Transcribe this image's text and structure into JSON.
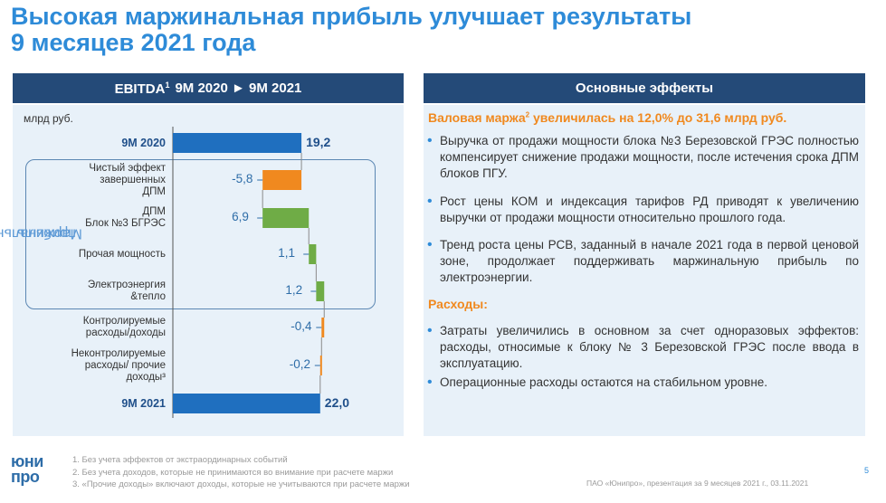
{
  "title": {
    "line1": "Высокая маржинальная прибыль улучшает результаты",
    "line2": "9 месяцев 2021 года"
  },
  "left_panel": {
    "header_ebitda": "EBITDA",
    "header_sup": "1",
    "header_rest": "9М 2020 ► 9М 2021",
    "unit": "млрд руб.",
    "group_label_line1": "Маржинальная",
    "group_label_line2": "прибыль"
  },
  "chart_data": {
    "type": "bar",
    "categories": [
      "9М 2020",
      "Чистый эффект завершенных ДПМ",
      "ДПМ Блок №3 БГРЭС",
      "Прочая мощность",
      "Электроэнергия &тепло",
      "Контролируемые расходы/доходы",
      "Неконтролируемые расходы/ прочие доходы",
      "9М 2021"
    ],
    "values": [
      19.2,
      -5.8,
      6.9,
      1.1,
      1.2,
      -0.4,
      -0.2,
      22.0
    ],
    "value_labels": [
      "19,2",
      "-5,8",
      "6,9",
      "1,1",
      "1,2",
      "-0,4",
      "-0,2",
      "22,0"
    ],
    "label_lines": [
      [
        "9М 2020"
      ],
      [
        "Чистый эффект",
        "завершенных",
        "ДПМ"
      ],
      [
        "ДПМ",
        "Блок №3 БГРЭС"
      ],
      [
        "Прочая мощность"
      ],
      [
        "Электроэнергия",
        "&тепло"
      ],
      [
        "Контролируемые",
        "расходы/доходы"
      ],
      [
        "Неконтролируемые",
        "расходы/ прочие",
        "доходы³"
      ],
      [
        "9М 2021"
      ]
    ],
    "kinds": [
      "total",
      "delta",
      "delta",
      "delta",
      "delta",
      "delta",
      "delta",
      "total"
    ],
    "colors": {
      "total": "#1f6fbf",
      "positive": "#6fac46",
      "negative": "#f0891f"
    },
    "orientation": "horizontal-waterfall"
  },
  "right_panel": {
    "header": "Основные эффекты",
    "section1_heading": "Валовая маржа",
    "section1_sup": "2",
    "section1_heading_rest": " увеличилась на 12,0% до 31,6 млрд руб.",
    "section1_bullets": [
      "Выручка от продажи мощности блока №3 Березовской ГРЭС полностью компенсирует снижение продажи мощности, после истечения срока ДПМ блоков ПГУ.",
      "Рост цены КОМ и индексация тарифов РД приводят к увеличению выручки от продажи мощности относительно  прошлого года.",
      "Тренд роста цены РСВ, заданный в начале 2021 года в первой ценовой зоне, продолжает поддерживать маржинальную прибыль по электроэнергии."
    ],
    "section2_heading": "Расходы:",
    "section2_bullets": [
      "Затраты увеличились в основном за счет одноразовых эффектов: расходы, относимые к блоку № 3 Березовской ГРЭС после ввода в эксплуатацию.",
      "Операционные расходы остаются на стабильном уровне."
    ]
  },
  "footer": {
    "logo_line1": "юни",
    "logo_line2": "про",
    "notes": [
      "1. Без учета эффектов от экстраординарных событий",
      "2. Без учета доходов, которые не принимаются во внимание при расчете маржи",
      "3. «Прочие доходы» включают доходы, которые не учитываются при расчете маржи"
    ],
    "source": "ПАО «Юнипро», презентация за 9 месяцев 2021 г., 03.11.2021",
    "page": "5"
  }
}
